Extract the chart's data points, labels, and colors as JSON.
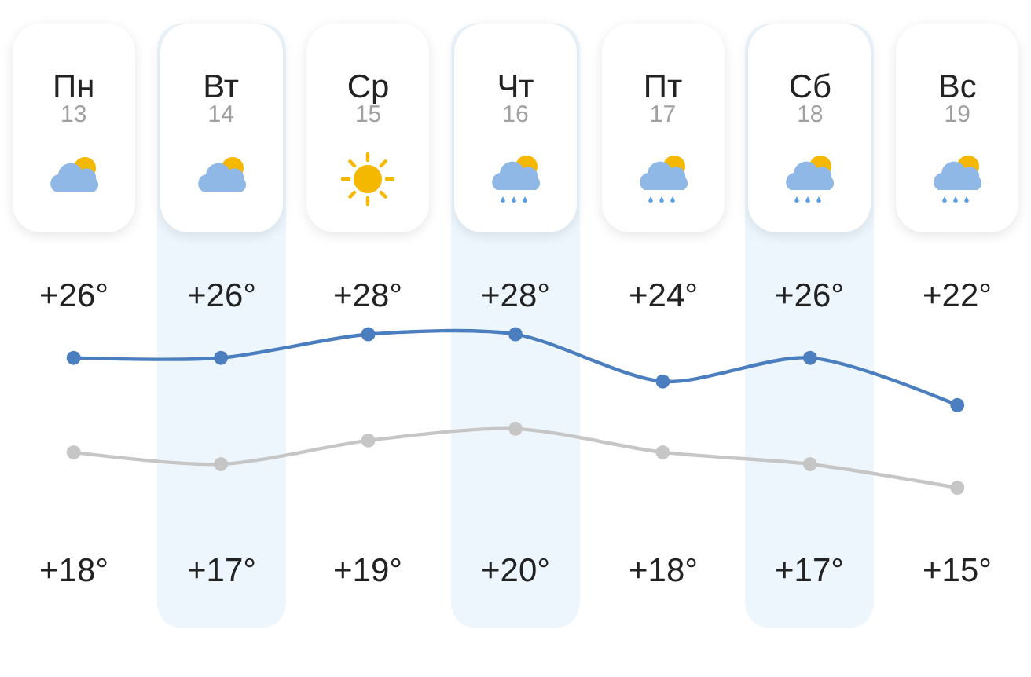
{
  "chart_data": {
    "type": "line",
    "categories": [
      "Пн 13",
      "Вт 14",
      "Ср 15",
      "Чт 16",
      "Пт 17",
      "Сб 18",
      "Вс 19"
    ],
    "marker": "circle",
    "grid": false,
    "tick_labels": "x",
    "series": [
      {
        "color": "#4a7ebf",
        "values": [
          26,
          26,
          28,
          28,
          24,
          26,
          22
        ],
        "value_labels": [
          "+26°",
          "+26°",
          "+28°",
          "+28°",
          "+24°",
          "+26°",
          "+22°"
        ]
      },
      {
        "color": "#c6c6c6",
        "values": [
          18,
          17,
          19,
          20,
          18,
          17,
          15
        ],
        "value_labels": [
          "+18°",
          "+17°",
          "+19°",
          "+20°",
          "+18°",
          "+17°",
          "+15°"
        ]
      }
    ]
  }
}
